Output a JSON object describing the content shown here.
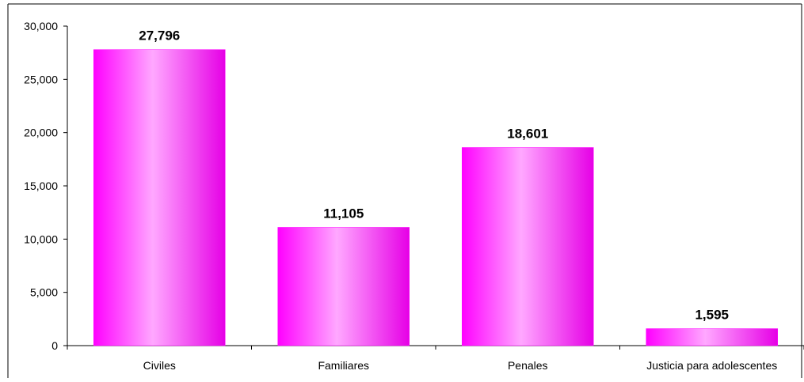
{
  "chart_data": {
    "type": "bar",
    "categories": [
      "Civiles",
      "Familiares",
      "Penales",
      "Justicia para adolescentes"
    ],
    "values": [
      27796,
      11105,
      18601,
      1595
    ],
    "value_labels": [
      "27,796",
      "11,105",
      "18,601",
      "1,595"
    ],
    "y_ticks": [
      0,
      5000,
      10000,
      15000,
      20000,
      25000,
      30000
    ],
    "y_tick_labels": [
      "0",
      "5,000",
      "10,000",
      "15,000",
      "20,000",
      "25,000",
      "30,000"
    ],
    "ylim": [
      0,
      30000
    ],
    "title": "",
    "xlabel": "",
    "ylabel": "",
    "grid": false,
    "legend": "none",
    "colors": {
      "bar_edge": "#ff00ff",
      "bar_center": "#ffa8ff",
      "bar_dark": "#e600e6",
      "axis": "#000000",
      "frame": "#000000"
    }
  }
}
